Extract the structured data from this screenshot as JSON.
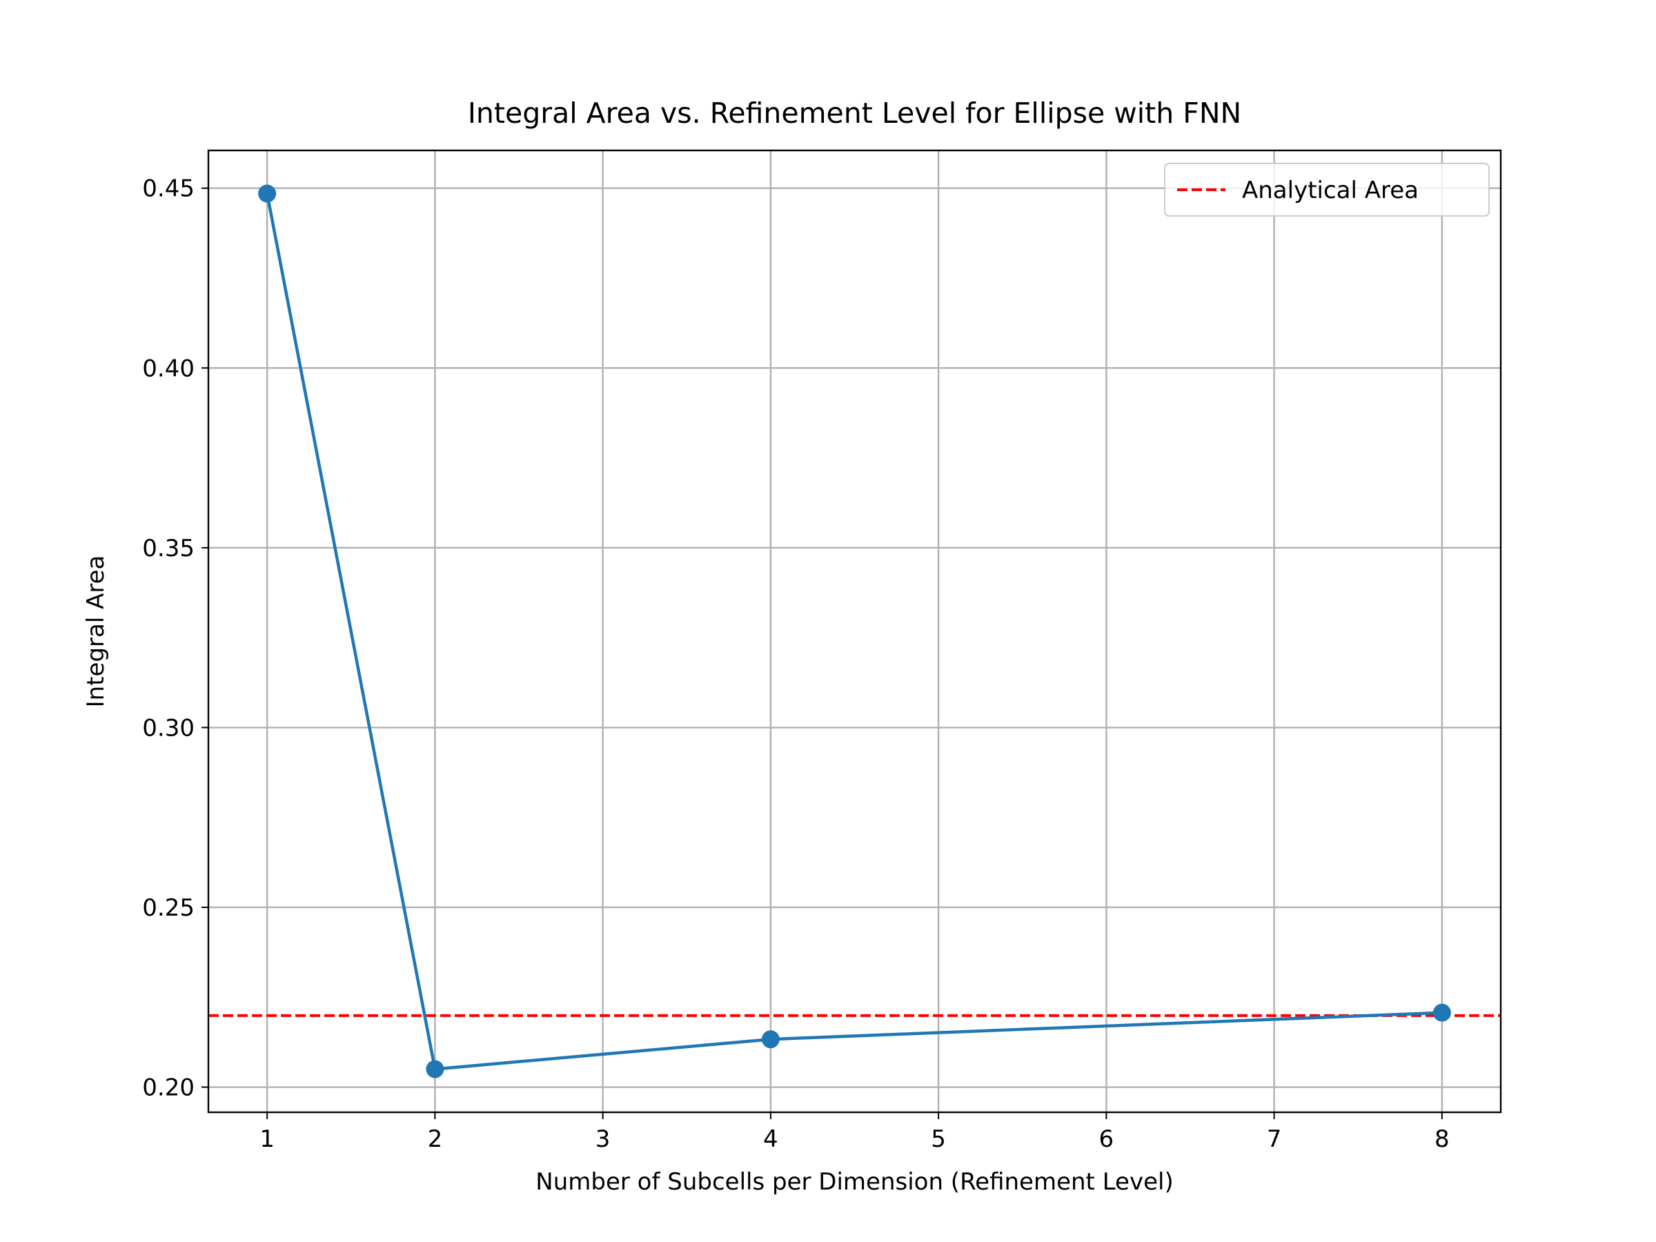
{
  "chart_data": {
    "type": "line",
    "title": "Integral Area vs. Refinement Level for Ellipse with FNN",
    "xlabel": "Number of Subcells per Dimension (Refinement Level)",
    "ylabel": "Integral Area",
    "xlim": [
      0.65,
      8.35
    ],
    "ylim": [
      0.193,
      0.4605
    ],
    "x_ticks": [
      1,
      2,
      3,
      4,
      5,
      6,
      7,
      8
    ],
    "x_tick_labels": [
      "1",
      "2",
      "3",
      "4",
      "5",
      "6",
      "7",
      "8"
    ],
    "y_ticks": [
      0.2,
      0.25,
      0.3,
      0.35,
      0.4,
      0.45
    ],
    "y_tick_labels": [
      "0.20",
      "0.25",
      "0.30",
      "0.35",
      "0.40",
      "0.45"
    ],
    "grid": true,
    "series": [
      {
        "x": [
          1,
          2,
          4,
          8
        ],
        "y": [
          0.4485,
          0.205,
          0.2133,
          0.2207
        ],
        "color": "#1f77b4",
        "marker": "circle"
      }
    ],
    "reference_lines": [
      {
        "name": "Analytical Area",
        "y": 0.2199,
        "color": "#ff0000",
        "style": "dashed"
      }
    ],
    "legend": {
      "position": "top-right",
      "entries": [
        "Analytical Area"
      ]
    }
  }
}
